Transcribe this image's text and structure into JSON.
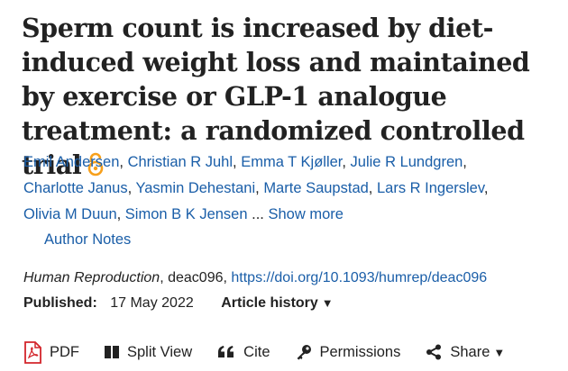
{
  "article": {
    "title": "Sperm count is increased by diet-induced weight loss and maintained by exercise or GLP-1 analogue treatment: a randomized controlled trial",
    "open_access_icon": "open-access-lock-icon",
    "authors": [
      "Emil Andersen",
      "Christian R Juhl",
      "Emma T Kjøller",
      "Julie R Lundgren",
      "Charlotte Janus",
      "Yasmin Dehestani",
      "Marte Saupstad",
      "Lars R Ingerslev",
      "Olivia M Duun",
      "Simon B K Jensen"
    ],
    "ellipsis": "...",
    "show_more": "Show more",
    "author_notes": "Author Notes",
    "journal": "Human Reproduction",
    "article_id": ", deac096, ",
    "doi": "https://doi.org/10.1093/humrep/deac096",
    "published_label": "Published:",
    "published_date": "17 May 2022",
    "article_history": "Article history"
  },
  "toolbar": {
    "pdf": "PDF",
    "split_view": "Split View",
    "cite": "Cite",
    "permissions": "Permissions",
    "share": "Share"
  },
  "colors": {
    "link": "#1a5ea8",
    "accent_oa": "#f7a01c",
    "pdf_red": "#d3252b"
  }
}
